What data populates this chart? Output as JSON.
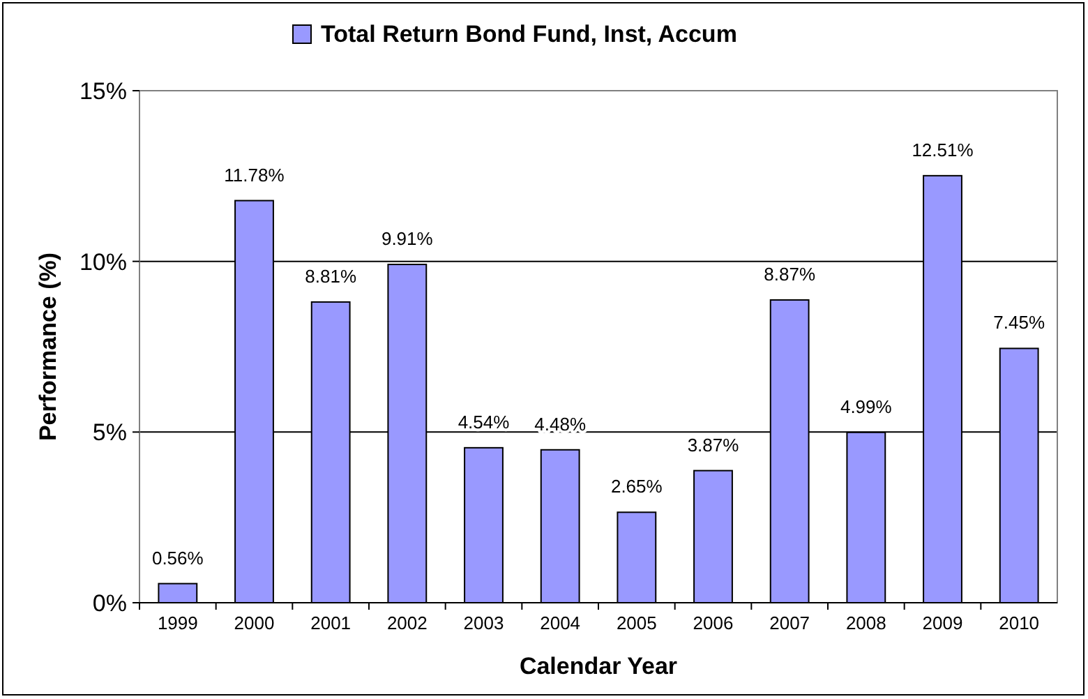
{
  "chart_data": {
    "type": "bar",
    "xlabel": "Calendar Year",
    "ylabel": "Performance (%)",
    "categories": [
      "1999",
      "2000",
      "2001",
      "2002",
      "2003",
      "2004",
      "2005",
      "2006",
      "2007",
      "2008",
      "2009",
      "2010"
    ],
    "series": [
      {
        "name": "Total Return Bond Fund, Inst, Accum",
        "color": "#9999ff",
        "values": [
          0.56,
          11.78,
          8.81,
          9.91,
          4.54,
          4.48,
          2.65,
          3.87,
          8.87,
          4.99,
          12.51,
          7.45
        ],
        "value_labels": [
          "0.56%",
          "11.78%",
          "8.81%",
          "9.91%",
          "4.54%",
          "4.48%",
          "2.65%",
          "3.87%",
          "8.87%",
          "4.99%",
          "12.51%",
          "7.45%"
        ]
      }
    ],
    "ylim": [
      0,
      15
    ],
    "yticks": [
      {
        "value": 0,
        "label": "0%"
      },
      {
        "value": 5,
        "label": "5%"
      },
      {
        "value": 10,
        "label": "10%"
      },
      {
        "value": 15,
        "label": "15%"
      }
    ],
    "grid": "y",
    "legend": "top"
  }
}
